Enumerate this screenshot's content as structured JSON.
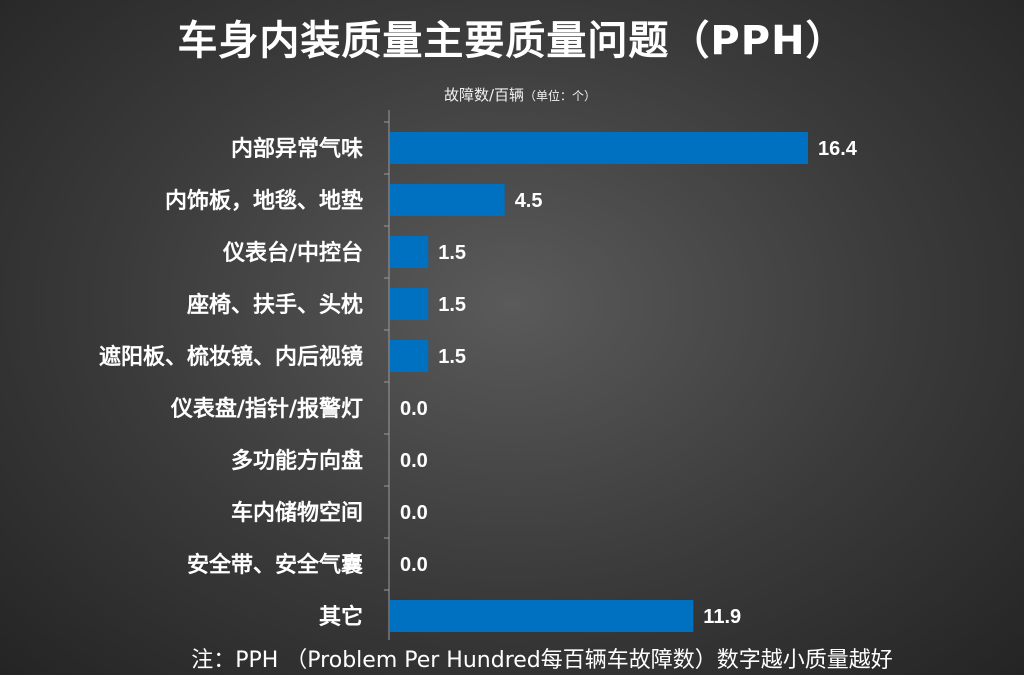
{
  "title": "车身内装质量主要质量问题（PPH）",
  "unit_label": "故障数/百辆",
  "unit_note": "（单位：个）",
  "footnote": "注：PPH （Problem Per Hundred每百辆车故障数）数字越小质量越好",
  "chart_data": {
    "type": "bar",
    "orientation": "horizontal",
    "title": "车身内装质量主要质量问题（PPH）",
    "xlabel": "故障数/百辆（单位：个）",
    "ylabel": "",
    "categories": [
      "内部异常气味",
      "内饰板，地毯、地垫",
      "仪表台/中控台",
      "座椅、扶手、头枕",
      "遮阳板、梳妆镜、内后视镜",
      "仪表盘/指针/报警灯",
      "多功能方向盘",
      "车内储物空间",
      "安全带、安全气囊",
      "其它"
    ],
    "values": [
      16.4,
      4.5,
      1.5,
      1.5,
      1.5,
      0.0,
      0.0,
      0.0,
      0.0,
      11.9
    ],
    "labels": [
      "16.4",
      "4.5",
      "1.5",
      "1.5",
      "1.5",
      "0.0",
      "0.0",
      "0.0",
      "0.0",
      "11.9"
    ],
    "xlim": [
      0,
      16.4
    ],
    "bar_color": "#0070c0",
    "grid": false
  }
}
